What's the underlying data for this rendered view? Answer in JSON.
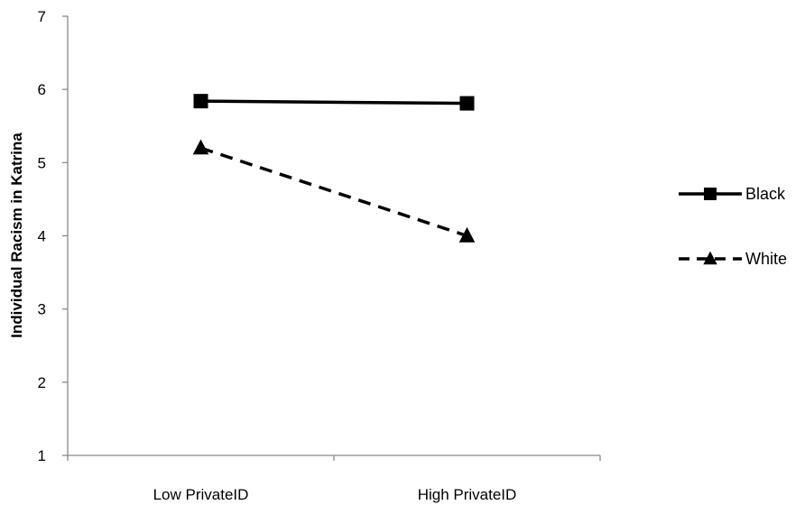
{
  "chart_data": {
    "type": "line",
    "title": "",
    "xlabel": "",
    "ylabel": "Individual Racism in Katrina",
    "categories": [
      "Low PrivateID",
      "High PrivateID"
    ],
    "ylim": [
      1,
      7
    ],
    "yticks": [
      1,
      2,
      3,
      4,
      5,
      6,
      7
    ],
    "grid": false,
    "legend_position": "right",
    "series": [
      {
        "name": "Black",
        "values": [
          5.84,
          5.81
        ],
        "marker": "square",
        "line_style": "solid",
        "color": "#000000"
      },
      {
        "name": "White",
        "values": [
          5.2,
          4.0
        ],
        "marker": "triangle",
        "line_style": "dashed",
        "color": "#000000"
      }
    ]
  }
}
